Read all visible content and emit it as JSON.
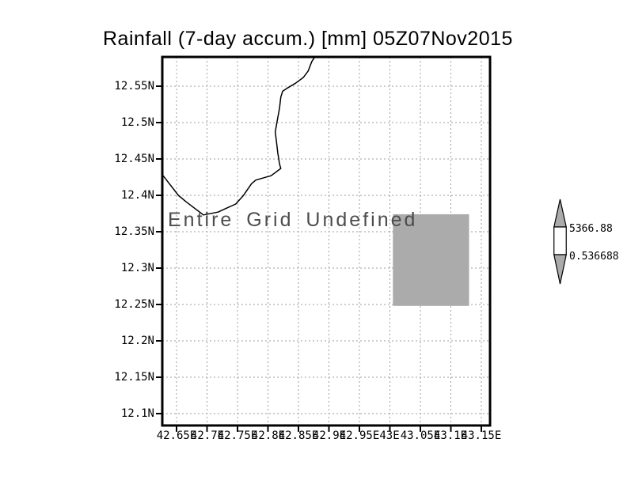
{
  "title": "Rainfall (7-day accum.) [mm] 05Z07Nov2015",
  "annotation": "Entire Grid Undefined",
  "colorbar": {
    "max_label": "5366.88",
    "min_label": "0.536688"
  },
  "colors": {
    "shade_gray": "#ababab",
    "grid_gray": "#9e9e9e",
    "frame": "#000000",
    "background": "#ffffff",
    "annotation_text": "#4d4d4d"
  },
  "chart_data": {
    "type": "map",
    "title": "Rainfall (7-day accum.) [mm] 05Z07Nov2015",
    "units": "mm",
    "valid_time": "05Z07Nov2015",
    "grid": "dotted",
    "annotation": "Entire Grid Undefined",
    "x_axis": {
      "ticks": [
        "42.65E",
        "42.7E",
        "42.75E",
        "42.8E",
        "42.85E",
        "42.9E",
        "42.95E",
        "43E",
        "43.05E",
        "43.1E",
        "43.15E"
      ],
      "values": [
        42.65,
        42.7,
        42.75,
        42.8,
        42.85,
        42.9,
        42.95,
        43.0,
        43.05,
        43.1,
        43.15
      ],
      "range": [
        42.6266,
        43.1643
      ]
    },
    "y_axis": {
      "ticks": [
        "12.55N",
        "12.5N",
        "12.45N",
        "12.4N",
        "12.35N",
        "12.3N",
        "12.25N",
        "12.2N",
        "12.15N",
        "12.1N"
      ],
      "values": [
        12.55,
        12.5,
        12.45,
        12.4,
        12.35,
        12.3,
        12.25,
        12.2,
        12.15,
        12.1
      ],
      "range": [
        12.0837,
        12.5902
      ]
    },
    "shaded_cell": {
      "lon": [
        43.005,
        43.13
      ],
      "lat": [
        12.248,
        12.374
      ],
      "fill": "#ababab"
    },
    "coastline_lonlat": [
      [
        42.876,
        12.589
      ],
      [
        42.872,
        12.584
      ],
      [
        42.866,
        12.571
      ],
      [
        42.858,
        12.562
      ],
      [
        42.845,
        12.554
      ],
      [
        42.831,
        12.547
      ],
      [
        42.824,
        12.543
      ],
      [
        42.821,
        12.535
      ],
      [
        42.819,
        12.52
      ],
      [
        42.815,
        12.502
      ],
      [
        42.812,
        12.487
      ],
      [
        42.814,
        12.473
      ],
      [
        42.816,
        12.459
      ],
      [
        42.819,
        12.443
      ],
      [
        42.821,
        12.437
      ],
      [
        42.805,
        12.427
      ],
      [
        42.78,
        12.421
      ],
      [
        42.773,
        12.416
      ],
      [
        42.759,
        12.399
      ],
      [
        42.747,
        12.388
      ],
      [
        42.731,
        12.382
      ],
      [
        42.718,
        12.377
      ],
      [
        42.694,
        12.373
      ],
      [
        42.666,
        12.391
      ],
      [
        42.653,
        12.4
      ],
      [
        42.628,
        12.427
      ]
    ],
    "colorbar": {
      "max": 5366.88,
      "min": 0.536688
    }
  }
}
